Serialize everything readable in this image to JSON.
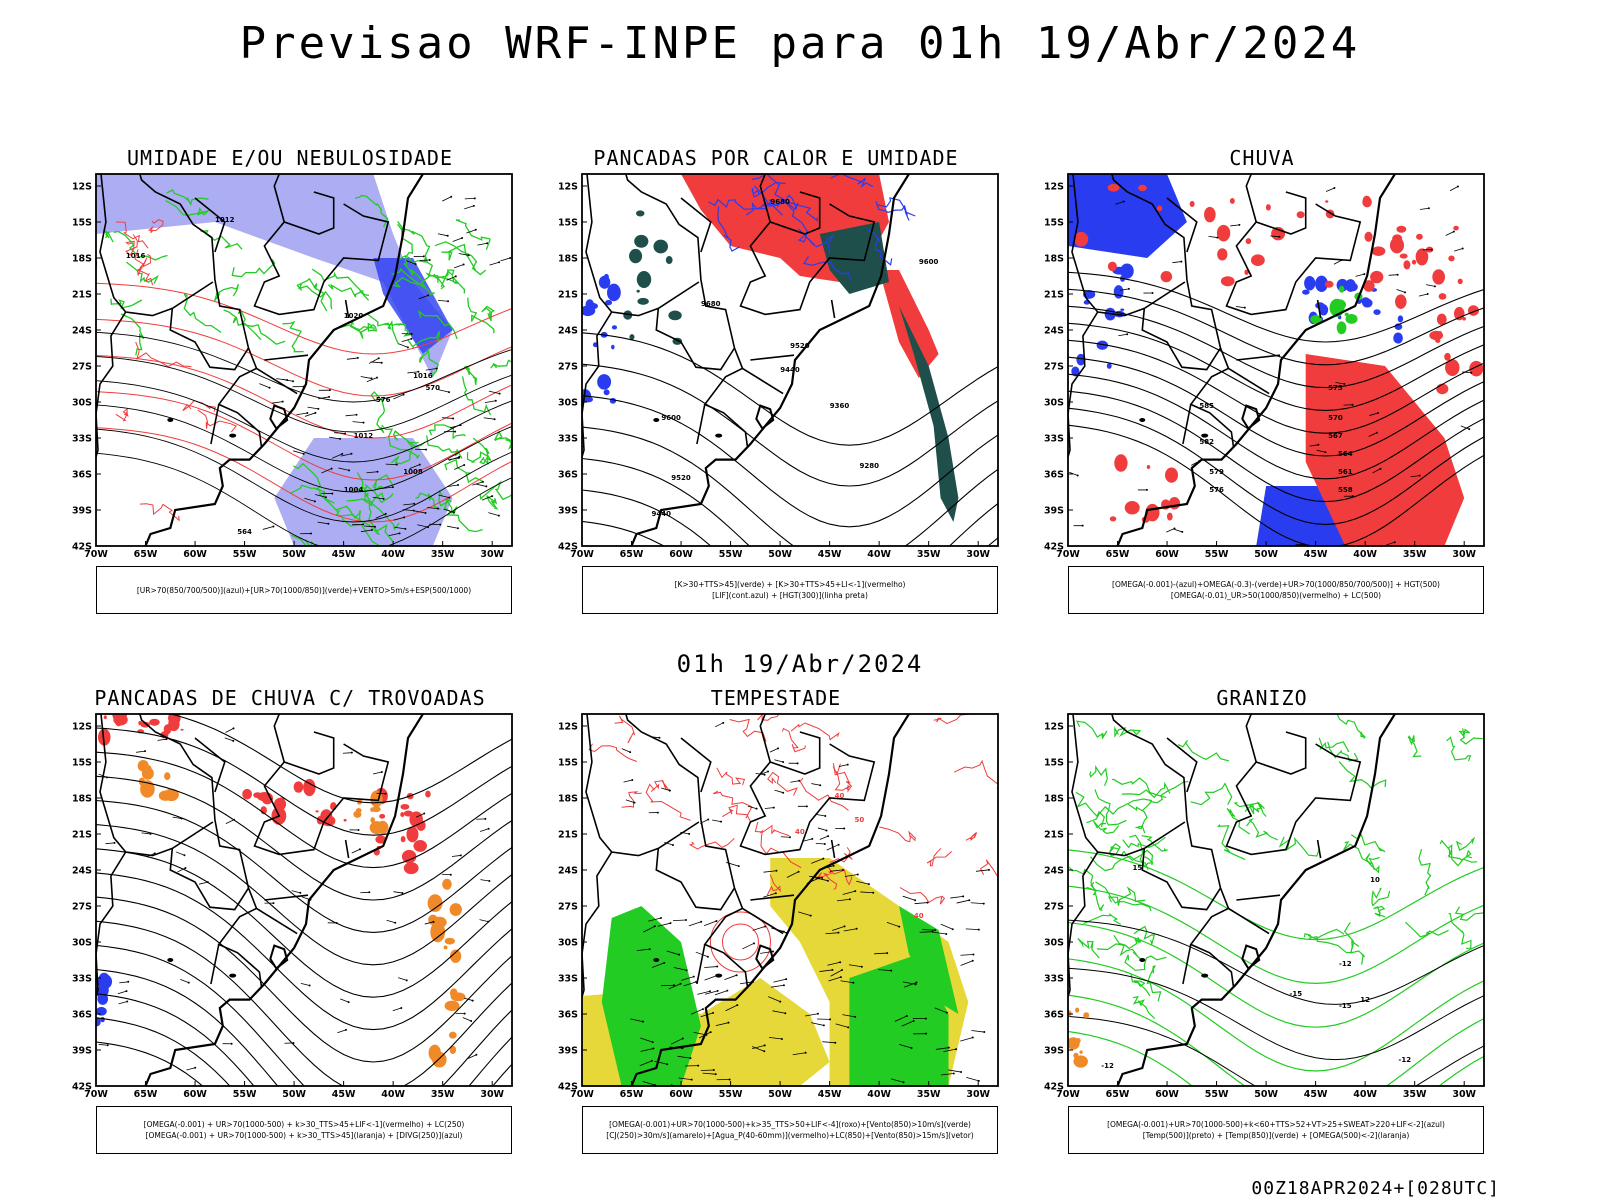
{
  "header": {
    "title": "Previsao WRF-INPE  para 01h 19/Abr/2024",
    "mid_title": "01h 19/Abr/2024",
    "footer": "00Z18APR2024+[028UTC]"
  },
  "axes": {
    "lat_labels": [
      "12S",
      "15S",
      "18S",
      "21S",
      "24S",
      "27S",
      "30S",
      "33S",
      "36S",
      "39S",
      "42S"
    ],
    "lon_labels": [
      "70W",
      "65W",
      "60W",
      "55W",
      "50W",
      "45W",
      "40W",
      "35W",
      "30W"
    ]
  },
  "colors": {
    "blue": "#2a3cf0",
    "light_blue": "#9d9ff0",
    "green": "#22cc22",
    "red": "#f03c3c",
    "dark_teal": "#1e4f4a",
    "orange": "#f08a28",
    "yellow": "#e6d838",
    "black": "#000000"
  },
  "panels": [
    {
      "id": "umidade",
      "title": "UMIDADE E/OU NEBULOSIDADE",
      "legend": [
        "[UR>70(850/700/500)](azul)+[UR>70(1000/850)](verde)+VENTO>5m/s+ESP(500/1000)"
      ],
      "contour_labels": [
        "1012",
        "1016",
        "1020",
        "1016",
        "1012",
        "1008",
        "1004",
        "570",
        "576",
        "564"
      ]
    },
    {
      "id": "pancadas-calor",
      "title": "PANCADAS POR CALOR E UMIDADE",
      "legend": [
        "[K>30+TTS>45](verde) + [K>30+TTS>45+LI<-1](vermelho)",
        "[LIF](cont.azul) + [HGT(300)](linha preta)"
      ],
      "contour_labels": [
        "9680",
        "9680",
        "9600",
        "9520",
        "9440",
        "9360",
        "9280",
        "9600",
        "9520",
        "9440"
      ]
    },
    {
      "id": "chuva",
      "title": "CHUVA",
      "legend": [
        "[OMEGA(-0.001)-(azul)+OMEGA(-0.3)-(verde)+UR>70(1000/850/700/500)] + HGT(500)",
        "[OMEGA(-0.01)_UR>50(1000/850)(vermelho) + LC(500)"
      ],
      "contour_labels": [
        "585",
        "582",
        "579",
        "576",
        "573",
        "570",
        "567",
        "564",
        "561",
        "558"
      ]
    },
    {
      "id": "trovoadas",
      "title": "PANCADAS DE CHUVA C/ TROVOADAS",
      "legend": [
        "[OMEGA(-0.001) + UR>70(1000-500) + k>30_TTS>45+LIF<-1](vermelho) + LC(250)",
        "[OMEGA(-0.001) + UR>70(1000-500) + k>30_TTS>45](laranja) + [DIVG(250)](azul)"
      ],
      "contour_labels": []
    },
    {
      "id": "tempestade",
      "title": "TEMPESTADE",
      "legend": [
        "[OMEGA(-0.001)+UR>70(1000-500)+k>35_TTS>50+LIF<-4](roxo)+[Vento(850)>10m/s](verde)",
        "[CJ(250)>30m/s](amarelo)+[Agua_P(40-60mm)](vermelho)+LC(850)+[Vento(850)>15m/s](vetor)"
      ],
      "contour_labels": [
        "40",
        "40",
        "50",
        "40"
      ]
    },
    {
      "id": "granizo",
      "title": "GRANIZO",
      "legend": [
        "[OMEGA(-0.001)+UR>70(1000-500)+k<60+TTS>52+VT>25+SWEAT>220+LIF<-2](azul)",
        "[Temp(500)](preto) + [Temp(850)](verde) + [OMEGA(500)<-2](laranja)"
      ],
      "contour_labels": [
        "-12",
        "-15",
        "-15",
        "-12",
        "-12",
        "12",
        "10",
        "15"
      ]
    }
  ]
}
